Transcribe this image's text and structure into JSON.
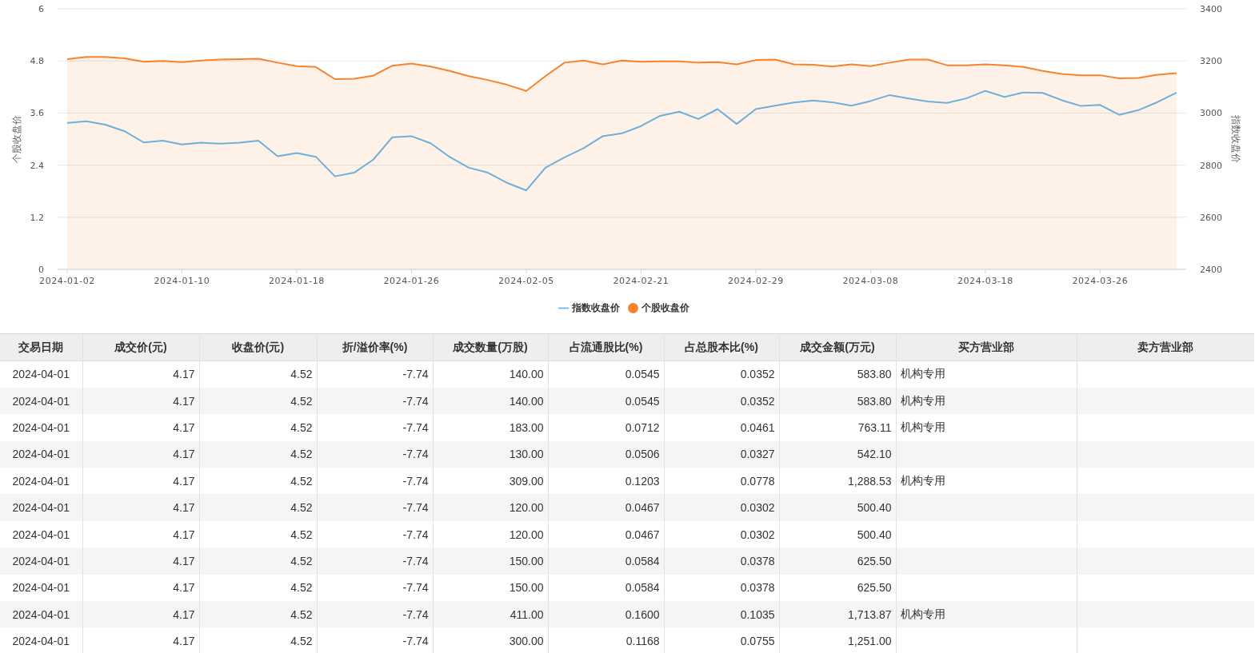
{
  "chart_data": [
    {
      "type": "line",
      "categories": [
        "2024-01-02",
        null,
        null,
        null,
        null,
        null,
        "2024-01-10",
        null,
        null,
        null,
        null,
        null,
        "2024-01-18",
        null,
        null,
        null,
        null,
        null,
        "2024-01-26",
        null,
        null,
        null,
        null,
        null,
        "2024-02-05",
        null,
        null,
        null,
        null,
        null,
        "2024-02-21",
        null,
        null,
        null,
        null,
        null,
        "2024-02-29",
        null,
        null,
        null,
        null,
        null,
        "2024-03-08",
        null,
        null,
        null,
        null,
        null,
        "2024-03-18",
        null,
        null,
        null,
        null,
        null,
        "2024-03-26",
        null,
        null,
        null,
        null
      ],
      "series": [
        {
          "name": "指数收盘价",
          "type": "line",
          "axis": "y2",
          "color": "#6cb0dd",
          "values": [
            2962,
            2968,
            2955,
            2930,
            2887,
            2894,
            2879,
            2886,
            2882,
            2886,
            2894,
            2834,
            2846,
            2832,
            2757,
            2771,
            2821,
            2907,
            2911,
            2884,
            2831,
            2790,
            2771,
            2732,
            2703,
            2790,
            2830,
            2865,
            2911,
            2922,
            2950,
            2989,
            3005,
            2977,
            3015,
            2958,
            3015,
            3028,
            3040,
            3048,
            3041,
            3028,
            3046,
            3069,
            3056,
            3044,
            3039,
            3056,
            3085,
            3062,
            3079,
            3077,
            3049,
            3027,
            3031,
            2993,
            3011,
            3042,
            3078
          ]
        },
        {
          "name": "个股收盘价",
          "type": "area",
          "color": "#f7842c",
          "values": [
            4.84,
            4.89,
            4.89,
            4.86,
            4.78,
            4.8,
            4.77,
            4.81,
            4.83,
            4.84,
            4.85,
            4.76,
            4.68,
            4.66,
            4.38,
            4.39,
            4.46,
            4.69,
            4.74,
            4.67,
            4.57,
            4.45,
            4.36,
            4.25,
            4.11,
            4.45,
            4.76,
            4.81,
            4.72,
            4.81,
            4.78,
            4.79,
            4.79,
            4.76,
            4.77,
            4.72,
            4.82,
            4.83,
            4.72,
            4.71,
            4.67,
            4.72,
            4.68,
            4.76,
            4.83,
            4.83,
            4.7,
            4.7,
            4.72,
            4.7,
            4.66,
            4.57,
            4.5,
            4.47,
            4.47,
            4.4,
            4.41,
            4.48,
            4.52
          ]
        }
      ],
      "ylabel": "个股收盘价",
      "y2label": "指数收盘价",
      "ylim": [
        0,
        6
      ],
      "yticks": [
        0,
        1.2,
        2.4,
        3.6,
        4.8,
        6
      ],
      "y2lim": [
        2400,
        3400
      ],
      "y2ticks": [
        2400,
        2600,
        2800,
        3000,
        3200,
        3400
      ],
      "grid": "y",
      "legend": "bottom",
      "marker": "none"
    },
    {
      "type": "other",
      "categories": [
        "交易日期",
        "成交价(元)",
        "收盘价(元)",
        "折/溢价率(%)",
        "成交数量(万股)",
        "占流通股比(%)",
        "占总股本比(%)",
        "成交金额(万元)",
        "买方营业部",
        "卖方营业部"
      ],
      "cell_labels": [
        [
          "2024-04-01",
          "4.17",
          "4.52",
          "-7.74",
          "140.00",
          "0.0545",
          "0.0352",
          "583.80",
          "机构专用",
          null
        ],
        [
          "2024-04-01",
          "4.17",
          "4.52",
          "-7.74",
          "140.00",
          "0.0545",
          "0.0352",
          "583.80",
          "机构专用",
          null
        ],
        [
          "2024-04-01",
          "4.17",
          "4.52",
          "-7.74",
          "183.00",
          "0.0712",
          "0.0461",
          "763.11",
          "机构专用",
          null
        ],
        [
          "2024-04-01",
          "4.17",
          "4.52",
          "-7.74",
          "130.00",
          "0.0506",
          "0.0327",
          "542.10",
          null,
          null
        ],
        [
          "2024-04-01",
          "4.17",
          "4.52",
          "-7.74",
          "309.00",
          "0.1203",
          "0.0778",
          "1,288.53",
          "机构专用",
          null
        ],
        [
          "2024-04-01",
          "4.17",
          "4.52",
          "-7.74",
          "120.00",
          "0.0467",
          "0.0302",
          "500.40",
          null,
          null
        ],
        [
          "2024-04-01",
          "4.17",
          "4.52",
          "-7.74",
          "120.00",
          "0.0467",
          "0.0302",
          "500.40",
          null,
          null
        ],
        [
          "2024-04-01",
          "4.17",
          "4.52",
          "-7.74",
          "150.00",
          "0.0584",
          "0.0378",
          "625.50",
          null,
          null
        ],
        [
          "2024-04-01",
          "4.17",
          "4.52",
          "-7.74",
          "150.00",
          "0.0584",
          "0.0378",
          "625.50",
          null,
          null
        ],
        [
          "2024-04-01",
          "4.17",
          "4.52",
          "-7.74",
          "411.00",
          "0.1600",
          "0.1035",
          "1,713.87",
          "机构专用",
          null
        ],
        [
          "2024-04-01",
          "4.17",
          "4.52",
          "-7.74",
          "300.00",
          "0.1168",
          "0.0755",
          "1,251.00",
          null,
          null
        ]
      ]
    }
  ]
}
